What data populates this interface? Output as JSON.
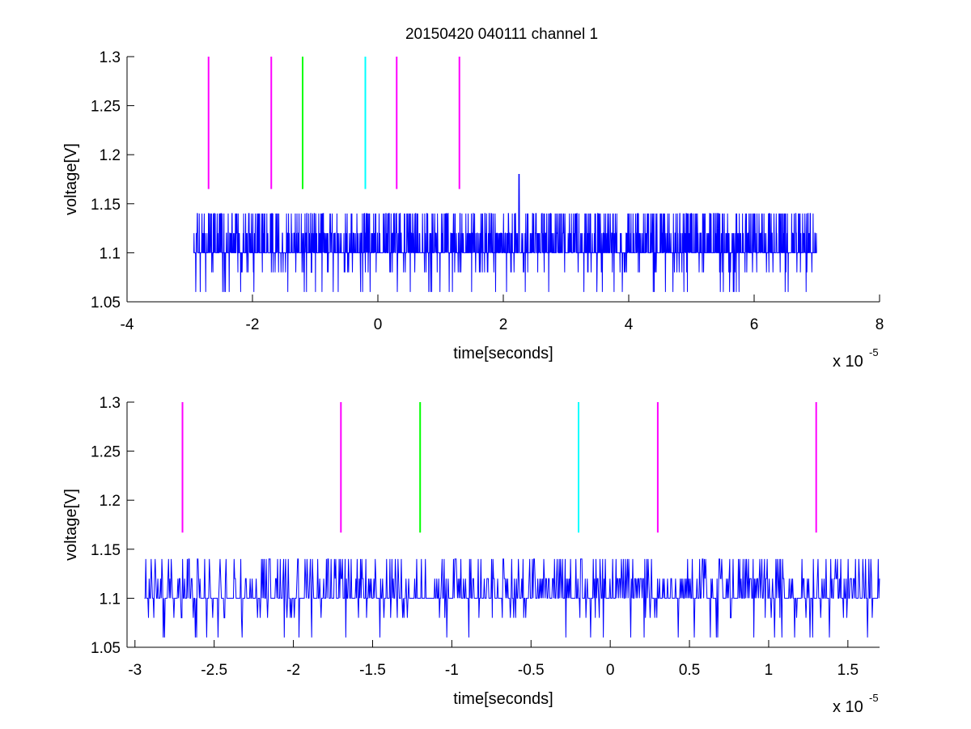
{
  "figure": {
    "title": "20150420 040111 channel 1",
    "background": "#ffffff"
  },
  "chart_data": [
    {
      "type": "line",
      "xlabel": "time[seconds]",
      "ylabel": "voltage[V]",
      "x_exponent_label": "x 10",
      "x_exponent": "-5",
      "xlim": [
        -4,
        8
      ],
      "ylim": [
        1.05,
        1.3
      ],
      "xticks": [
        -4,
        -2,
        0,
        2,
        4,
        6,
        8
      ],
      "xtick_labels": [
        "-4",
        "-2",
        "0",
        "2",
        "4",
        "6",
        "8"
      ],
      "yticks": [
        1.05,
        1.1,
        1.15,
        1.2,
        1.25,
        1.3
      ],
      "ytick_labels": [
        "1.05",
        "1.1",
        "1.15",
        "1.2",
        "1.25",
        "1.3"
      ],
      "grid": false,
      "box": false,
      "markers": [
        {
          "x": -2.7,
          "y0": 1.165,
          "y1": 1.3,
          "color": "#ff00ff"
        },
        {
          "x": -1.7,
          "y0": 1.165,
          "y1": 1.3,
          "color": "#ff00ff"
        },
        {
          "x": -1.2,
          "y0": 1.165,
          "y1": 1.3,
          "color": "#00ff00"
        },
        {
          "x": -0.2,
          "y0": 1.165,
          "y1": 1.3,
          "color": "#00ffff"
        },
        {
          "x": 0.3,
          "y0": 1.165,
          "y1": 1.3,
          "color": "#ff00ff"
        },
        {
          "x": 1.3,
          "y0": 1.165,
          "y1": 1.3,
          "color": "#ff00ff"
        }
      ],
      "series": [
        {
          "color": "#0000ff",
          "generator": "noise",
          "x_range": [
            -2.94,
            7.0
          ],
          "samples": 2500,
          "seed": 7,
          "levels": [
            1.06,
            1.08,
            1.1,
            1.12,
            1.14
          ],
          "spike": {
            "x": 2.25,
            "y": 1.18
          }
        }
      ]
    },
    {
      "type": "line",
      "xlabel": "time[seconds]",
      "ylabel": "voltage[V]",
      "x_exponent_label": "x 10",
      "x_exponent": "-5",
      "xlim": [
        -3.05,
        1.7
      ],
      "ylim": [
        1.05,
        1.3
      ],
      "xticks": [
        -3,
        -2.5,
        -2,
        -1.5,
        -1,
        -0.5,
        0,
        0.5,
        1,
        1.5
      ],
      "xtick_labels": [
        "-3",
        "-2.5",
        "-2",
        "-1.5",
        "-1",
        "-0.5",
        "0",
        "0.5",
        "1",
        "1.5"
      ],
      "yticks": [
        1.05,
        1.1,
        1.15,
        1.2,
        1.25,
        1.3
      ],
      "ytick_labels": [
        "1.05",
        "1.1",
        "1.15",
        "1.2",
        "1.25",
        "1.3"
      ],
      "grid": false,
      "box": false,
      "markers": [
        {
          "x": -2.7,
          "y0": 1.167,
          "y1": 1.3,
          "color": "#ff00ff"
        },
        {
          "x": -1.7,
          "y0": 1.167,
          "y1": 1.3,
          "color": "#ff00ff"
        },
        {
          "x": -1.2,
          "y0": 1.167,
          "y1": 1.3,
          "color": "#00ff00"
        },
        {
          "x": -0.2,
          "y0": 1.167,
          "y1": 1.3,
          "color": "#00ffff"
        },
        {
          "x": 0.3,
          "y0": 1.167,
          "y1": 1.3,
          "color": "#ff00ff"
        },
        {
          "x": 1.3,
          "y0": 1.167,
          "y1": 1.3,
          "color": "#ff00ff"
        }
      ],
      "series": [
        {
          "color": "#0000ff",
          "generator": "noise",
          "x_range": [
            -2.94,
            1.7
          ],
          "samples": 1100,
          "seed": 13,
          "levels": [
            1.06,
            1.08,
            1.1,
            1.12,
            1.14
          ]
        }
      ]
    }
  ]
}
